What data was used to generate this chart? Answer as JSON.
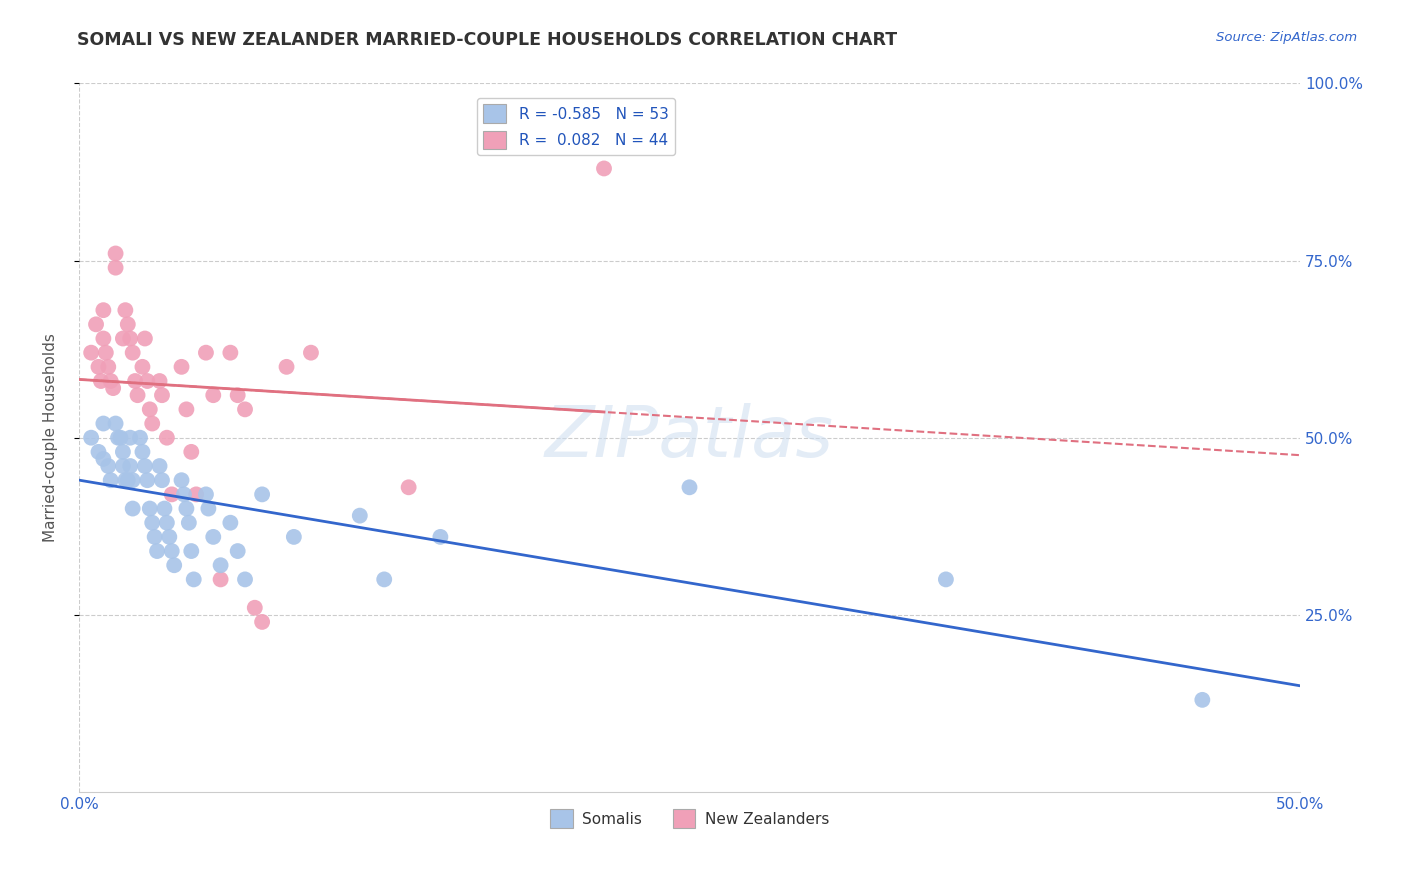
{
  "title": "SOMALI VS NEW ZEALANDER MARRIED-COUPLE HOUSEHOLDS CORRELATION CHART",
  "source": "Source: ZipAtlas.com",
  "ylabel": "Married-couple Households",
  "legend_somali": "Somalis",
  "legend_nz": "New Zealanders",
  "r_somali": "-0.585",
  "n_somali": "53",
  "r_nz": "0.082",
  "n_nz": "44",
  "somali_color": "#a8c4e8",
  "nz_color": "#f0a0b8",
  "somali_line_color": "#3366cc",
  "nz_line_color": "#e07080",
  "background_color": "#ffffff",
  "xlim": [
    0.0,
    0.5
  ],
  "ylim": [
    0.0,
    1.0
  ],
  "somali_x": [
    0.005,
    0.008,
    0.01,
    0.01,
    0.012,
    0.013,
    0.015,
    0.016,
    0.017,
    0.018,
    0.018,
    0.019,
    0.02,
    0.021,
    0.021,
    0.022,
    0.022,
    0.025,
    0.026,
    0.027,
    0.028,
    0.029,
    0.03,
    0.031,
    0.032,
    0.033,
    0.034,
    0.035,
    0.036,
    0.037,
    0.038,
    0.039,
    0.042,
    0.043,
    0.044,
    0.045,
    0.046,
    0.047,
    0.052,
    0.053,
    0.055,
    0.058,
    0.062,
    0.065,
    0.068,
    0.075,
    0.088,
    0.115,
    0.125,
    0.148,
    0.25,
    0.355,
    0.46
  ],
  "somali_y": [
    0.5,
    0.48,
    0.52,
    0.47,
    0.46,
    0.44,
    0.52,
    0.5,
    0.5,
    0.48,
    0.46,
    0.44,
    0.44,
    0.5,
    0.46,
    0.44,
    0.4,
    0.5,
    0.48,
    0.46,
    0.44,
    0.4,
    0.38,
    0.36,
    0.34,
    0.46,
    0.44,
    0.4,
    0.38,
    0.36,
    0.34,
    0.32,
    0.44,
    0.42,
    0.4,
    0.38,
    0.34,
    0.3,
    0.42,
    0.4,
    0.36,
    0.32,
    0.38,
    0.34,
    0.3,
    0.42,
    0.36,
    0.39,
    0.3,
    0.36,
    0.43,
    0.3,
    0.13
  ],
  "nz_x": [
    0.005,
    0.007,
    0.008,
    0.009,
    0.01,
    0.01,
    0.011,
    0.012,
    0.013,
    0.014,
    0.015,
    0.015,
    0.018,
    0.019,
    0.02,
    0.021,
    0.022,
    0.023,
    0.024,
    0.026,
    0.027,
    0.028,
    0.029,
    0.03,
    0.033,
    0.034,
    0.036,
    0.038,
    0.042,
    0.044,
    0.046,
    0.048,
    0.052,
    0.055,
    0.058,
    0.062,
    0.065,
    0.068,
    0.072,
    0.075,
    0.085,
    0.095,
    0.135,
    0.215
  ],
  "nz_y": [
    0.62,
    0.66,
    0.6,
    0.58,
    0.68,
    0.64,
    0.62,
    0.6,
    0.58,
    0.57,
    0.74,
    0.76,
    0.64,
    0.68,
    0.66,
    0.64,
    0.62,
    0.58,
    0.56,
    0.6,
    0.64,
    0.58,
    0.54,
    0.52,
    0.58,
    0.56,
    0.5,
    0.42,
    0.6,
    0.54,
    0.48,
    0.42,
    0.62,
    0.56,
    0.3,
    0.62,
    0.56,
    0.54,
    0.26,
    0.24,
    0.6,
    0.62,
    0.43,
    0.88
  ]
}
